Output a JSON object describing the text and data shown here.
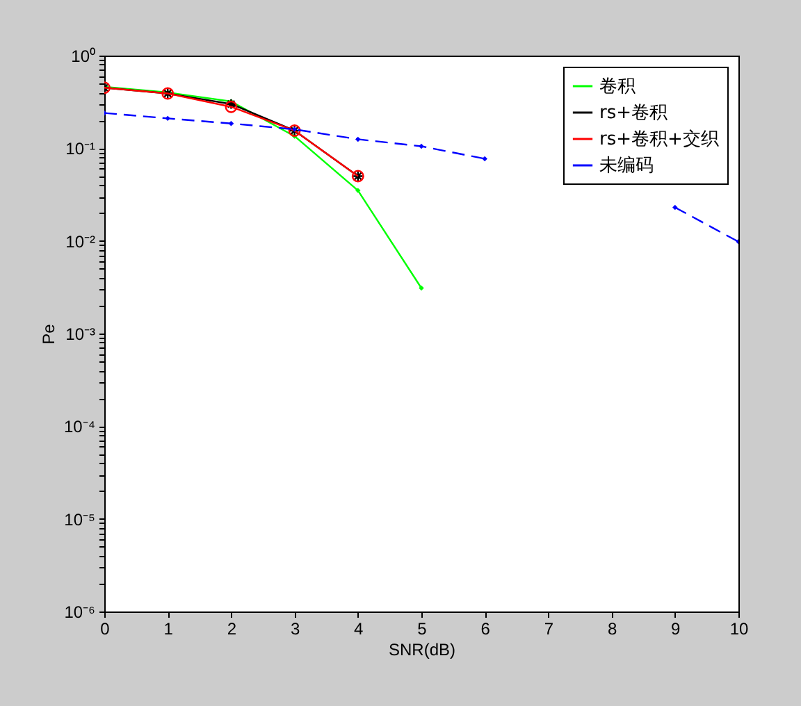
{
  "chart_data": {
    "type": "line",
    "xlabel": "SNR(dB)",
    "ylabel": "Pe",
    "log": "y",
    "legend": "top right",
    "xlim": [
      0,
      10
    ],
    "xticks": [
      0,
      1,
      2,
      3,
      4,
      5,
      6,
      7,
      8,
      9,
      10
    ],
    "ylim": [
      1e-06,
      1
    ],
    "yticks": [
      {
        "value": 1e-06,
        "label": "10⁻⁶"
      },
      {
        "value": 2e-06,
        "label": null
      },
      {
        "value": 3e-06,
        "label": null
      },
      {
        "value": 4e-06,
        "label": null
      },
      {
        "value": 5e-06,
        "label": null
      },
      {
        "value": 6e-06,
        "label": null
      },
      {
        "value": 7e-06,
        "label": null
      },
      {
        "value": 8e-06,
        "label": null
      },
      {
        "value": 9e-06,
        "label": null
      },
      {
        "value": 1e-05,
        "label": "10⁻⁵"
      },
      {
        "value": 2e-05,
        "label": null
      },
      {
        "value": 3e-05,
        "label": null
      },
      {
        "value": 4e-05,
        "label": null
      },
      {
        "value": 5e-05,
        "label": null
      },
      {
        "value": 6e-05,
        "label": null
      },
      {
        "value": 7e-05,
        "label": null
      },
      {
        "value": 8e-05,
        "label": null
      },
      {
        "value": 9e-05,
        "label": null
      },
      {
        "value": 0.0001,
        "label": "10⁻⁴"
      },
      {
        "value": 0.0002,
        "label": null
      },
      {
        "value": 0.0003,
        "label": null
      },
      {
        "value": 0.0004,
        "label": null
      },
      {
        "value": 0.0005,
        "label": null
      },
      {
        "value": 0.0006,
        "label": null
      },
      {
        "value": 0.0007,
        "label": null
      },
      {
        "value": 0.0008,
        "label": null
      },
      {
        "value": 0.0009,
        "label": null
      },
      {
        "value": 0.001,
        "label": "10⁻³"
      },
      {
        "value": 0.002,
        "label": null
      },
      {
        "value": 0.003,
        "label": null
      },
      {
        "value": 0.004,
        "label": null
      },
      {
        "value": 0.005,
        "label": null
      },
      {
        "value": 0.006,
        "label": null
      },
      {
        "value": 0.007,
        "label": null
      },
      {
        "value": 0.008,
        "label": null
      },
      {
        "value": 0.009,
        "label": null
      },
      {
        "value": 0.01,
        "label": "10⁻²"
      },
      {
        "value": 0.02,
        "label": null
      },
      {
        "value": 0.03,
        "label": null
      },
      {
        "value": 0.04,
        "label": null
      },
      {
        "value": 0.05,
        "label": null
      },
      {
        "value": 0.06,
        "label": null
      },
      {
        "value": 0.07,
        "label": null
      },
      {
        "value": 0.08,
        "label": null
      },
      {
        "value": 0.09,
        "label": null
      },
      {
        "value": 0.1,
        "label": "10⁻¹"
      },
      {
        "value": 0.2,
        "label": null
      },
      {
        "value": 0.3,
        "label": null
      },
      {
        "value": 0.4,
        "label": null
      },
      {
        "value": 0.5,
        "label": null
      },
      {
        "value": 0.6,
        "label": null
      },
      {
        "value": 0.7,
        "label": null
      },
      {
        "value": 0.8,
        "label": null
      },
      {
        "value": 0.9,
        "label": null
      },
      {
        "value": 1,
        "label": "10⁰"
      }
    ],
    "series": [
      {
        "name": "卷积",
        "color": "#00ff00",
        "x": [
          0,
          1,
          2,
          3,
          4,
          5
        ],
        "values": [
          0.46,
          0.4,
          0.32,
          0.135,
          0.035,
          0.0031
        ],
        "marker": "diamond",
        "line_style": "solid"
      },
      {
        "name": "rs+卷积",
        "color": "#000000",
        "x": [
          0,
          1,
          2,
          3,
          4
        ],
        "values": [
          0.45,
          0.39,
          0.3,
          0.155,
          0.05
        ],
        "marker": "cross",
        "line_style": "solid"
      },
      {
        "name": "rs+卷积+交织",
        "color": "#ff0000",
        "x": [
          0,
          1,
          2,
          3,
          4
        ],
        "values": [
          0.45,
          0.39,
          0.28,
          0.155,
          0.05
        ],
        "marker": "circle",
        "line_style": "solid"
      },
      {
        "name": "未编码",
        "color": "#0000ff",
        "x": [
          0,
          1,
          2,
          3,
          4,
          5,
          6,
          7,
          8,
          9,
          10
        ],
        "values": [
          0.24,
          0.21,
          0.185,
          0.16,
          0.125,
          0.105,
          0.077,
          null,
          null,
          0.023,
          0.0098
        ],
        "marker": "diamond",
        "line_style": "dashed"
      }
    ]
  }
}
